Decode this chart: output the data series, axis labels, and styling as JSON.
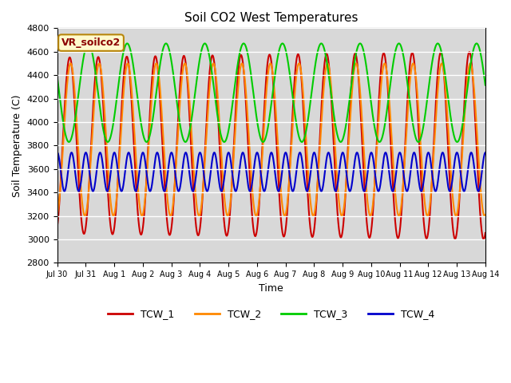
{
  "title": "Soil CO2 West Temperatures",
  "xlabel": "Time",
  "ylabel": "Soil Temperature (C)",
  "ylim": [
    2800,
    4800
  ],
  "yticks": [
    2800,
    3000,
    3200,
    3400,
    3600,
    3800,
    4000,
    4200,
    4400,
    4600,
    4800
  ],
  "bg_color": "#d8d8d8",
  "fig_color": "#ffffff",
  "annotation_text": "VR_soilco2",
  "annotation_fg": "#8B0000",
  "annotation_bg": "#FFFACD",
  "annotation_border": "#B8860B",
  "line_colors": {
    "TCW_1": "#cc0000",
    "TCW_2": "#ff8800",
    "TCW_3": "#00cc00",
    "TCW_4": "#0000cc"
  },
  "line_width": 1.5,
  "x_tick_labels": [
    "Jul 30",
    "Jul 31",
    "Aug 1",
    "Aug 2",
    "Aug 3",
    "Aug 4",
    "Aug 5",
    "Aug 6",
    "Aug 7",
    "Aug 8",
    "Aug 9",
    "Aug 10",
    "Aug 11",
    "Aug 12",
    "Aug 13",
    "Aug 14"
  ]
}
